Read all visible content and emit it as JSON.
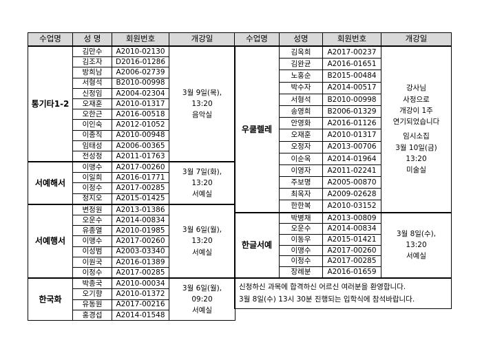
{
  "left": {
    "headers": [
      "수업명",
      "성 명",
      "회원번호",
      "개강일"
    ],
    "groups": [
      {
        "class": "통기타1-2",
        "members": [
          [
            "김만수",
            "A2010-02130"
          ],
          [
            "김조자",
            "D2016-01286"
          ],
          [
            "방희남",
            "A2006-02739"
          ],
          [
            "서형석",
            "B2010-00998"
          ],
          [
            "신정임",
            "A2004-02304"
          ],
          [
            "오재훈",
            "A2010-01317"
          ],
          [
            "오한근",
            "A2016-00518"
          ],
          [
            "이인숙",
            "A2012-01052"
          ],
          [
            "이종직",
            "A2010-00948"
          ],
          [
            "임태성",
            "A2006-00365"
          ],
          [
            "전성정",
            "A2011-01763"
          ]
        ],
        "schedule": [
          [
            "3월 9일(목),",
            "13:20",
            "음악실"
          ]
        ]
      },
      {
        "class": "서예해서",
        "members": [
          [
            "이맹수",
            "A2017-00260"
          ],
          [
            "이일희",
            "A2016-01771"
          ],
          [
            "이정수",
            "A2017-00285"
          ],
          [
            "정지오",
            "A2015-01425"
          ]
        ],
        "schedule": [
          [
            "3월 7일(화),",
            "13:20",
            "서예실"
          ]
        ]
      },
      {
        "class": "서예행서",
        "members": [
          [
            "변정원",
            "A2013-01386"
          ],
          [
            "오운수",
            "A2014-00834"
          ],
          [
            "유종열",
            "A2010-01985"
          ],
          [
            "이맹수",
            "A2017-00260"
          ],
          [
            "이성범",
            "A2003-03340"
          ],
          [
            "이원국",
            "A2016-01389"
          ],
          [
            "이정수",
            "A2017-00285"
          ]
        ],
        "schedule": [
          [
            "3월 6일(월),",
            "13:20",
            "서예실"
          ]
        ]
      },
      {
        "class": "한국화",
        "members": [
          [
            "박종국",
            "A2010-00034"
          ],
          [
            "오기향",
            "A2010-01372"
          ],
          [
            "유동원",
            "A2017-00216"
          ],
          [
            "홍경섭",
            "A2014-01548"
          ]
        ],
        "schedule": [
          [
            "3월 6일(월),",
            "09:20",
            "서예실"
          ]
        ]
      }
    ]
  },
  "right": {
    "headers": [
      "수업명",
      "성명",
      "회원번호",
      "개강일"
    ],
    "groups": [
      {
        "class": "우쿨렐레",
        "members": [
          [
            "김옥희",
            "A2017-00237"
          ],
          [
            "김완균",
            "A2016-01651"
          ],
          [
            "노홍순",
            "B2015-00484"
          ],
          [
            "박수자",
            "A2014-00517"
          ],
          [
            "서형석",
            "B2010-00998"
          ],
          [
            "송영희",
            "B2006-01329"
          ],
          [
            "안영화",
            "A2016-01126"
          ],
          [
            "오재훈",
            "A2010-01317"
          ],
          [
            "오정자",
            "A2013-00706"
          ],
          [
            "이순옥",
            "A2014-01964"
          ],
          [
            "이영자",
            "A2011-02241"
          ],
          [
            "주보명",
            "A2005-00870"
          ],
          [
            "최옥자",
            "A2009-02628"
          ],
          [
            "한한복",
            "A2010-03152"
          ]
        ],
        "schedule": [
          [
            "강사님",
            "사정으로",
            "개강이 1주",
            "연기되었습니다"
          ],
          [
            "임시소집",
            "3월 10일(금)",
            "13:20",
            "미술실"
          ]
        ]
      },
      {
        "class": "한글서예",
        "members": [
          [
            "박병채",
            "A2013-00809"
          ],
          [
            "오운수",
            "A2014-00834"
          ],
          [
            "이동우",
            "A2015-01421"
          ],
          [
            "이맹수",
            "A2017-00260"
          ],
          [
            "이정수",
            "A2017-00285"
          ],
          [
            "장례분",
            "A2016-01659"
          ]
        ],
        "schedule": [
          [
            "3월 8일(수),",
            "13:20",
            "서예실"
          ]
        ]
      }
    ]
  },
  "notice": [
    "신청하신 과목에 합격하신 어르신 여러분을 환영합니다.",
    "3월 8일(수) 13시 30분 진행되는 입학식에 참석바랍니다."
  ]
}
